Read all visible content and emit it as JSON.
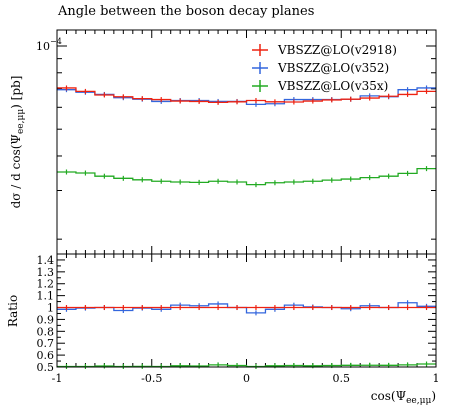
{
  "chart_data": [
    {
      "type": "line",
      "title": "Angle between the boson decay planes",
      "ylabel": "dσ / d cos(Ψee,μμ) [pb]",
      "ylabel_parts": {
        "main": "dσ / d cos(Ψ",
        "sub": "ee,μμ",
        "tail": ") [pb]"
      },
      "ytick_label": "10",
      "ytick_exp": "−4",
      "ylog": true,
      "x_edges": [
        -1.0,
        -0.9,
        -0.8,
        -0.7,
        -0.6,
        -0.5,
        -0.4,
        -0.3,
        -0.2,
        -0.1,
        0.0,
        0.1,
        0.2,
        0.3,
        0.4,
        0.5,
        0.6,
        0.7,
        0.8,
        0.9,
        1.0
      ],
      "legend_position": "top-right",
      "series": [
        {
          "name": "VBSZZ@LO(v2918)",
          "color": "#ee2211",
          "values": [
            7.05e-05,
            6.85e-05,
            6.65e-05,
            6.55e-05,
            6.45e-05,
            6.4e-05,
            6.32e-05,
            6.3e-05,
            6.25e-05,
            6.28e-05,
            6.35e-05,
            6.28e-05,
            6.27e-05,
            6.32e-05,
            6.38e-05,
            6.42e-05,
            6.48e-05,
            6.58e-05,
            6.68e-05,
            6.85e-05
          ]
        },
        {
          "name": "VBSZZ@LO(v352)",
          "color": "#3366dd",
          "values": [
            6.95e-05,
            6.8e-05,
            6.68e-05,
            6.5e-05,
            6.42e-05,
            6.3e-05,
            6.35e-05,
            6.35e-05,
            6.3e-05,
            6.3e-05,
            6.15e-05,
            6.18e-05,
            6.4e-05,
            6.4e-05,
            6.4e-05,
            6.42e-05,
            6.6e-05,
            6.55e-05,
            6.95e-05,
            7.05e-05
          ]
        },
        {
          "name": "VBSZZ@LO(v35x)",
          "color": "#22aa22",
          "values": [
            3.5e-05,
            3.47e-05,
            3.38e-05,
            3.32e-05,
            3.28e-05,
            3.24e-05,
            3.22e-05,
            3.21e-05,
            3.24e-05,
            3.22e-05,
            3.15e-05,
            3.2e-05,
            3.22e-05,
            3.24e-05,
            3.27e-05,
            3.3e-05,
            3.34e-05,
            3.38e-05,
            3.46e-05,
            3.6e-05
          ]
        }
      ]
    },
    {
      "type": "line",
      "ylabel": "Ratio",
      "xlabel": "cos(Ψee,μμ)",
      "xlabel_parts": {
        "main": "cos(Ψ",
        "sub": "ee,μμ",
        "tail": ")"
      },
      "xlim": [
        -1,
        1
      ],
      "ylim": [
        0.5,
        1.45
      ],
      "xticks": [
        -1,
        -0.5,
        0,
        0.5,
        1
      ],
      "xtick_labels": [
        "-1",
        "-0.5",
        "0",
        "0.5",
        "1"
      ],
      "yticks": [
        0.5,
        0.6,
        0.7,
        0.8,
        0.9,
        1.0,
        1.1,
        1.2,
        1.3,
        1.4
      ],
      "ytick_labels": [
        "0.5",
        "0.6",
        "0.7",
        "0.8",
        "0.9",
        "1",
        "1.1",
        "1.2",
        "1.3",
        "1.4"
      ],
      "series": [
        {
          "name": "VBSZZ@LO(v2918)",
          "color": "#ee2211",
          "values": [
            1,
            1,
            1,
            1,
            1,
            1,
            1,
            1,
            1,
            1,
            1,
            1,
            1,
            1,
            1,
            1,
            1,
            1,
            1,
            1
          ]
        },
        {
          "name": "VBSZZ@LO(v352)",
          "color": "#3366dd",
          "values": [
            0.985,
            0.995,
            1.0,
            0.975,
            0.995,
            0.985,
            1.02,
            1.015,
            1.03,
            1.0,
            0.955,
            0.985,
            1.02,
            1.005,
            1.0,
            0.99,
            1.015,
            1.0,
            1.04,
            1.01
          ]
        },
        {
          "name": "VBSZZ@LO(v35x)",
          "color": "#22aa22",
          "values": [
            0.496,
            0.5,
            0.508,
            0.5,
            0.505,
            0.502,
            0.51,
            0.508,
            0.518,
            0.512,
            0.496,
            0.51,
            0.512,
            0.51,
            0.512,
            0.514,
            0.515,
            0.514,
            0.518,
            0.525
          ]
        }
      ]
    }
  ]
}
